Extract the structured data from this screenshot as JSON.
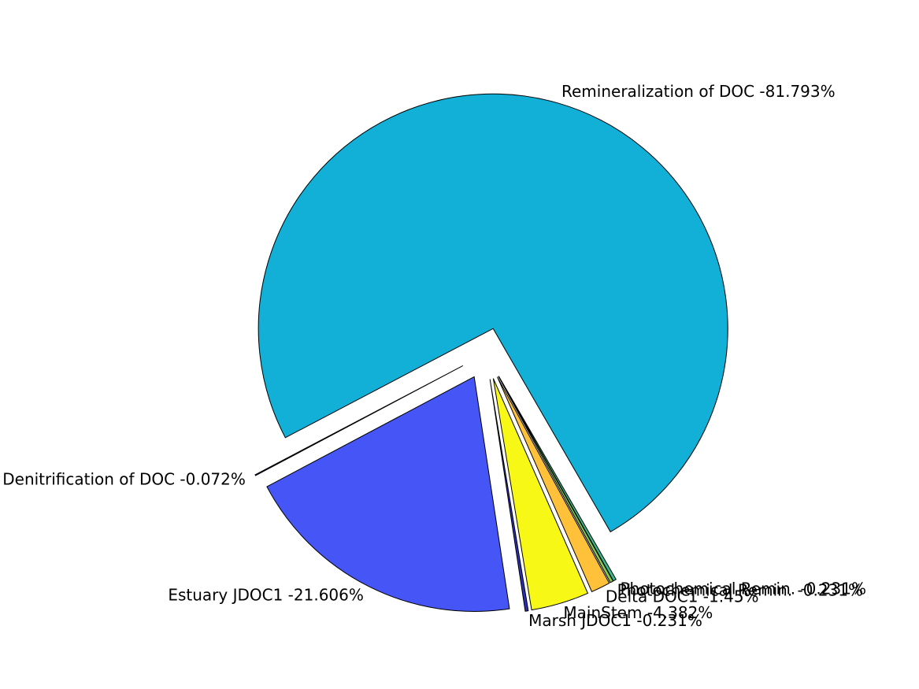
{
  "chart_data": {
    "type": "pie",
    "title": "",
    "explode": true,
    "slices": [
      {
        "label": "Remineralization of DOC -81.793%",
        "value": 81.793,
        "color": "#12AFD6"
      },
      {
        "label": "Denitrification of DOC -0.072%",
        "value": 0.072,
        "color": "#0A1A8A"
      },
      {
        "label": "Estuary JDOC1 -21.606%",
        "value": 21.606,
        "color": "#4655F5"
      },
      {
        "label": "Marsh JDOC1 -0.231%",
        "value": 0.231,
        "color": "#2B2FB8"
      },
      {
        "label": "MainStem -4.382%",
        "value": 4.382,
        "color": "#F8F817"
      },
      {
        "label": "Delta DOC1 -1.45%",
        "value": 1.45,
        "color": "#FFC13A"
      },
      {
        "label": "Photochemical Remin. -0.231%",
        "value": 0.231,
        "color": "#8CC84A"
      },
      {
        "label": "Photochemical Remin. -0.231%",
        "value": 0.231,
        "color": "#3DB88A"
      }
    ]
  }
}
